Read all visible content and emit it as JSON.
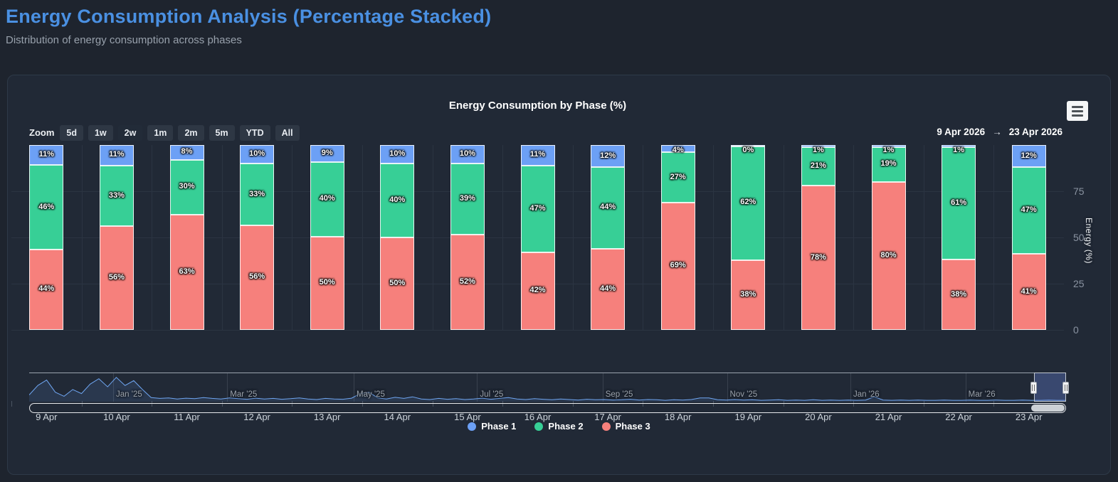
{
  "page": {
    "title": "Energy Consumption Analysis (Percentage Stacked)",
    "subtitle": "Distribution of energy consumption across phases"
  },
  "chart": {
    "title": "Energy Consumption by Phase (%)",
    "toolbar": {
      "zoom_label": "Zoom",
      "buttons": [
        "5d",
        "1w",
        "2w",
        "1m",
        "2m",
        "5m",
        "YTD",
        "All"
      ],
      "selected": "2w"
    },
    "range": {
      "from": "9 Apr 2026",
      "arrow": "→",
      "to": "23 Apr 2026"
    },
    "menu_icon": "hamburger-menu-icon"
  },
  "chart_data": {
    "type": "bar",
    "stacking": "percent",
    "title": "Energy Consumption by Phase (%)",
    "categories": [
      "9 Apr",
      "10 Apr",
      "11 Apr",
      "12 Apr",
      "13 Apr",
      "14 Apr",
      "15 Apr",
      "16 Apr",
      "17 Apr",
      "18 Apr",
      "19 Apr",
      "20 Apr",
      "21 Apr",
      "22 Apr",
      "23 Apr"
    ],
    "series": [
      {
        "name": "Phase 1",
        "color": "#6CA0F5",
        "values": [
          11,
          11,
          8,
          10,
          9,
          10,
          10,
          11,
          12,
          4,
          0,
          1,
          1,
          1,
          12
        ]
      },
      {
        "name": "Phase 2",
        "color": "#37CF96",
        "values": [
          46,
          33,
          30,
          33,
          40,
          40,
          39,
          47,
          44,
          27,
          62,
          21,
          19,
          61,
          47
        ]
      },
      {
        "name": "Phase 3",
        "color": "#F6807C",
        "values": [
          44,
          56,
          63,
          56,
          50,
          50,
          52,
          42,
          44,
          69,
          38,
          78,
          80,
          38,
          41
        ]
      }
    ],
    "ylabel": "Energy (%)",
    "yticks": [
      0,
      25,
      50,
      75
    ],
    "ylim": [
      0,
      100
    ],
    "grid": true,
    "legend_position": "bottom",
    "navigator": {
      "months": [
        {
          "label": "Jan '25",
          "pos": 0.081
        },
        {
          "label": "Mar '25",
          "pos": 0.191
        },
        {
          "label": "May '25",
          "pos": 0.313
        },
        {
          "label": "Jul '25",
          "pos": 0.432
        },
        {
          "label": "Sep '25",
          "pos": 0.553
        },
        {
          "label": "Nov '25",
          "pos": 0.673
        },
        {
          "label": "Jan '26",
          "pos": 0.792
        },
        {
          "label": "Mar '26",
          "pos": 0.903
        }
      ],
      "points": [
        25,
        60,
        80,
        35,
        20,
        45,
        30,
        65,
        85,
        55,
        90,
        60,
        78,
        45,
        15,
        12,
        14,
        10,
        13,
        11,
        15,
        12,
        10,
        14,
        11,
        9,
        13,
        10,
        12,
        9,
        11,
        14,
        10,
        8,
        12,
        10,
        9,
        13,
        30,
        35,
        14,
        10,
        16,
        12,
        18,
        10,
        8,
        12,
        9,
        11,
        8,
        10,
        13,
        9,
        12,
        15,
        10,
        8,
        11,
        9,
        7,
        10,
        8,
        6,
        9,
        7,
        8,
        6,
        7,
        9,
        6,
        8,
        7,
        5,
        7,
        6,
        8,
        14,
        14,
        7,
        6,
        8,
        6,
        7,
        5,
        6,
        7,
        5,
        6,
        5,
        7,
        5,
        6,
        5,
        6,
        5,
        6,
        18,
        6,
        5,
        6,
        5,
        6,
        5,
        5,
        6,
        5,
        5,
        6,
        5,
        5,
        6,
        5,
        5,
        6,
        5,
        5,
        6,
        5,
        5
      ],
      "selected_range": [
        0.969,
        1.0
      ]
    }
  },
  "legend": {
    "items": [
      {
        "label": "Phase 1",
        "color": "#6CA0F5"
      },
      {
        "label": "Phase 2",
        "color": "#37CF96"
      },
      {
        "label": "Phase 3",
        "color": "#F6807C"
      }
    ]
  }
}
